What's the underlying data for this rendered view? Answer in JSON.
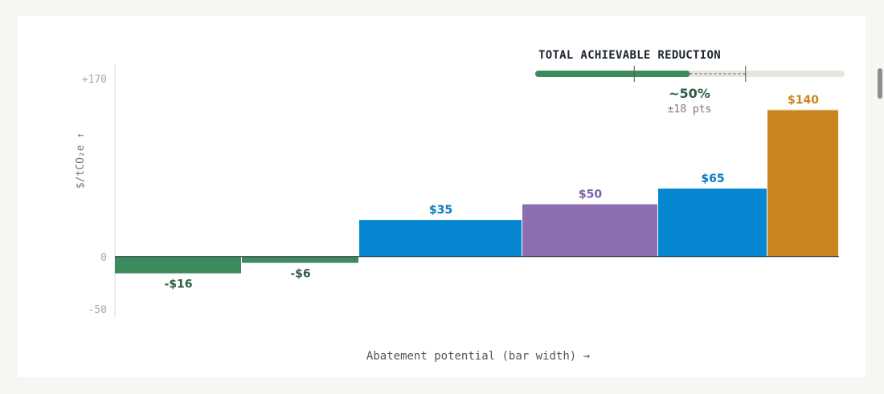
{
  "chart_data": {
    "type": "bar",
    "subtype": "marginal-abatement-cost-curve",
    "ylabel": "$/tCO₂e ↑",
    "xlabel": "Abatement potential (bar width) →",
    "ylim": [
      -50,
      170
    ],
    "yticks": [
      {
        "value": 170,
        "label": "+170"
      },
      {
        "value": 0,
        "label": "0"
      },
      {
        "value": -50,
        "label": "-50"
      }
    ],
    "bars": [
      {
        "value": -16,
        "label": "-$16",
        "width": 158,
        "color": "#3d8a5e",
        "label_color": "#2d5e43"
      },
      {
        "value": -6,
        "label": "-$6",
        "width": 146,
        "color": "#3d8a5e",
        "label_color": "#2d5e43"
      },
      {
        "value": 35,
        "label": "$35",
        "width": 203,
        "color": "#0588d1",
        "label_color": "#0a7bbd"
      },
      {
        "value": 50,
        "label": "$50",
        "width": 169,
        "color": "#8b6fb0",
        "label_color": "#7a5fa5"
      },
      {
        "value": 65,
        "label": "$65",
        "width": 136,
        "color": "#0588d1",
        "label_color": "#0a7bbd"
      },
      {
        "value": 140,
        "label": "$140",
        "width": 89,
        "color": "#c8841e",
        "label_color": "#c8841e"
      }
    ],
    "grid": false,
    "legend": "none"
  },
  "annotation": {
    "title": "TOTAL ACHIEVABLE REDUCTION",
    "value_label": "~50%",
    "range_label": "±18 pts",
    "progress": 0.5,
    "range_low": 0.32,
    "range_high": 0.68,
    "fill_color": "#3d8a5e",
    "track_color": "#e6e5de"
  }
}
